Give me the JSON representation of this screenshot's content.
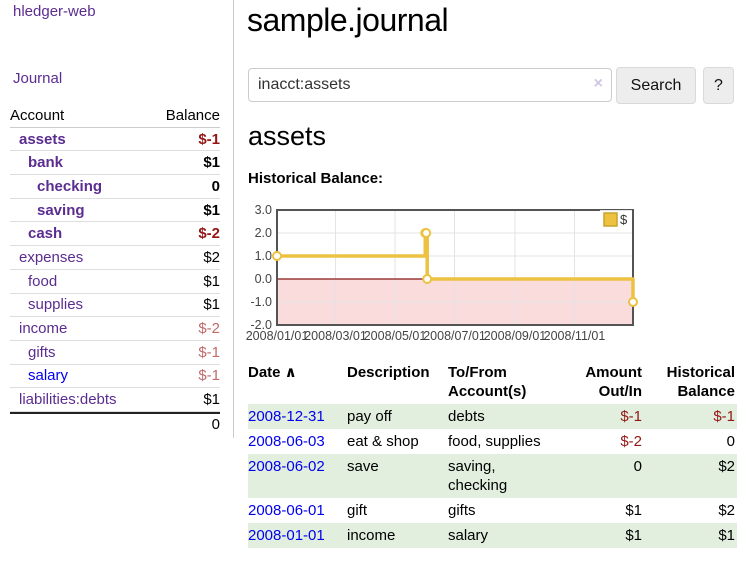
{
  "sidebar": {
    "brand": "hledger-web",
    "journal_link": "Journal",
    "accounts": {
      "headers": {
        "account": "Account",
        "balance": "Balance"
      },
      "rows": [
        {
          "name": "assets",
          "indent": 1,
          "bold": true,
          "link_style": "visited",
          "balance": "$-1",
          "balance_style": "neg"
        },
        {
          "name": "bank",
          "indent": 2,
          "bold": true,
          "link_style": "visited",
          "balance": "$1",
          "balance_style": "pos"
        },
        {
          "name": "checking",
          "indent": 3,
          "bold": true,
          "link_style": "visited",
          "balance": "0",
          "balance_style": "pos"
        },
        {
          "name": "saving",
          "indent": 3,
          "bold": true,
          "link_style": "visited",
          "balance": "$1",
          "balance_style": "pos"
        },
        {
          "name": "cash",
          "indent": 2,
          "bold": true,
          "link_style": "visited",
          "balance": "$-2",
          "balance_style": "neg"
        },
        {
          "name": "expenses",
          "indent": 1,
          "bold": false,
          "link_style": "visited",
          "balance": "$2",
          "balance_style": "pos"
        },
        {
          "name": "food",
          "indent": 2,
          "bold": false,
          "link_style": "visited",
          "balance": "$1",
          "balance_style": "pos"
        },
        {
          "name": "supplies",
          "indent": 2,
          "bold": false,
          "link_style": "visited",
          "balance": "$1",
          "balance_style": "pos"
        },
        {
          "name": "income",
          "indent": 1,
          "bold": false,
          "link_style": "visited",
          "balance": "$-2",
          "balance_style": "negmuted"
        },
        {
          "name": "gifts",
          "indent": 2,
          "bold": false,
          "link_style": "visited",
          "balance": "$-1",
          "balance_style": "negmuted"
        },
        {
          "name": "salary",
          "indent": 2,
          "bold": false,
          "link_style": "unvisited",
          "balance": "$-1",
          "balance_style": "negmuted"
        },
        {
          "name": "liabilities:debts",
          "indent": 1,
          "bold": false,
          "link_style": "visited",
          "balance": "$1",
          "balance_style": "pos"
        }
      ],
      "total": "0"
    }
  },
  "main": {
    "title": "sample.journal",
    "search": {
      "value": "inacct:assets",
      "clear_icon": "×",
      "search_button": "Search",
      "help_button": "?"
    },
    "account_heading": "assets",
    "chart_label": "Historical Balance:"
  },
  "chart_data": {
    "type": "line",
    "step": true,
    "title": "Historical Balance:",
    "series": [
      {
        "name": "$",
        "color": "#edc240",
        "points": [
          [
            "2008-01-01",
            1
          ],
          [
            "2008-06-01",
            2
          ],
          [
            "2008-06-02",
            2
          ],
          [
            "2008-06-03",
            0
          ],
          [
            "2008-12-31",
            -1
          ]
        ]
      }
    ],
    "x_ticks": [
      "2008/01/01",
      "2008/03/01",
      "2008/05/01",
      "2008/07/01",
      "2008/09/01",
      "2008/11/01"
    ],
    "y_ticks": [
      3.0,
      2.0,
      1.0,
      0.0,
      -1.0,
      -2.0
    ],
    "y_tick_labels": [
      "3.0",
      "2.0",
      "1.0",
      "0.0",
      "-1.0",
      "-2.0"
    ],
    "xlim": [
      "2008-01-01",
      "2008-12-31"
    ],
    "ylim": [
      -2,
      3
    ],
    "grid": true,
    "legend": {
      "label": "$",
      "position": "top-right"
    },
    "negative_region_color": "#fadcdc",
    "zero_line_color": "#871616",
    "line_color": "#edc240",
    "marker_fill": "#ffffff"
  },
  "register": {
    "headers": [
      {
        "label": "Date",
        "sort_icon": "∧",
        "align": "left"
      },
      {
        "label": "Description",
        "align": "left"
      },
      {
        "label": "To/From\nAccount(s)",
        "align": "left"
      },
      {
        "label": "Amount\nOut/In",
        "align": "right"
      },
      {
        "label": "Historical\nBalance",
        "align": "right"
      }
    ],
    "rows": [
      {
        "date": "2008-12-31",
        "description": "pay off",
        "accounts": "debts",
        "amount": "$-1",
        "amount_neg": true,
        "balance": "$-1",
        "balance_neg": true
      },
      {
        "date": "2008-06-03",
        "description": "eat & shop",
        "accounts": "food, supplies",
        "amount": "$-2",
        "amount_neg": true,
        "balance": "0",
        "balance_neg": false
      },
      {
        "date": "2008-06-02",
        "description": "save",
        "accounts": "saving, checking",
        "amount": "0",
        "amount_neg": false,
        "balance": "$2",
        "balance_neg": false
      },
      {
        "date": "2008-06-01",
        "description": "gift",
        "accounts": "gifts",
        "amount": "$1",
        "amount_neg": false,
        "balance": "$2",
        "balance_neg": false
      },
      {
        "date": "2008-01-01",
        "description": "income",
        "accounts": "salary",
        "amount": "$1",
        "amount_neg": false,
        "balance": "$1",
        "balance_neg": false
      }
    ]
  },
  "colors": {
    "link_visited_purple": "#5b2d90",
    "link_unvisited_blue": "#0000ee",
    "negative_strong": "#941616",
    "negative_muted": "#c16a6a",
    "row_stripe_green": "#e2efdf",
    "chart_gold": "#edc240",
    "separator_gray": "#cccccc"
  }
}
